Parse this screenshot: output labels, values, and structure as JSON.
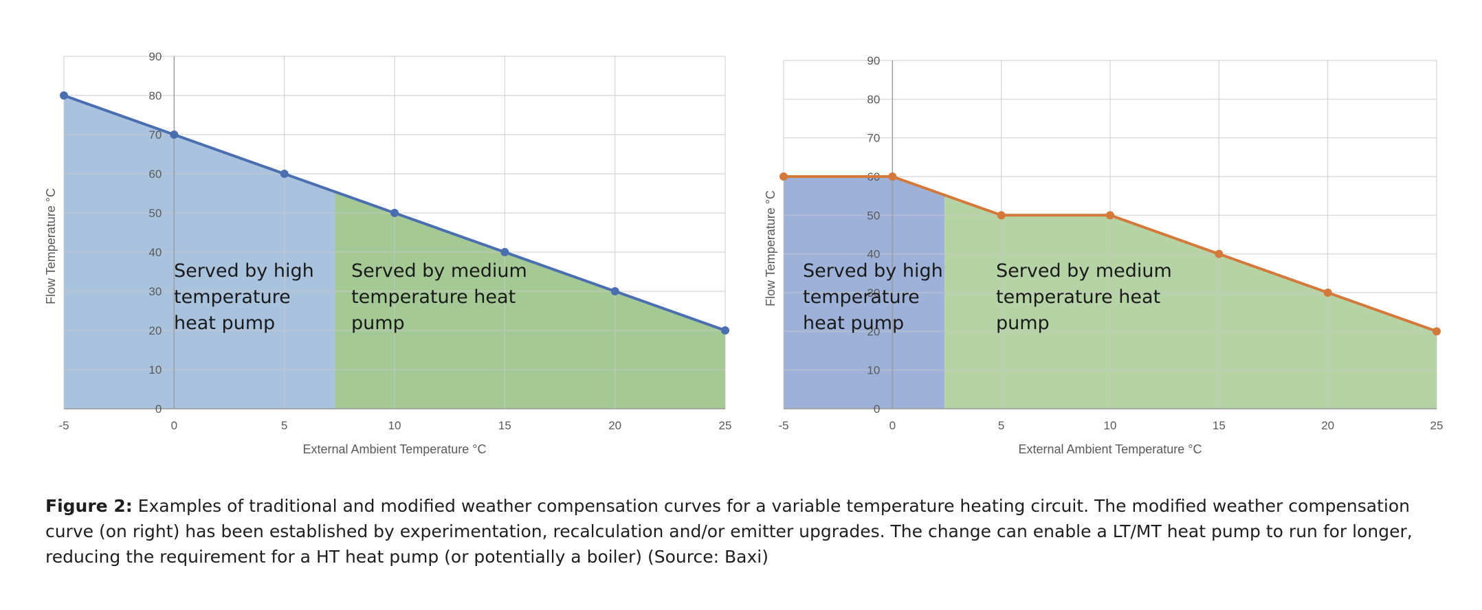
{
  "chart_data": [
    {
      "type": "area",
      "xlabel": "External Ambient Temperature °C",
      "ylabel": "Flow Temperature °C",
      "xlim": [
        -5,
        25
      ],
      "ylim": [
        0,
        90
      ],
      "x_ticks": [
        "-5",
        "0",
        "5",
        "10",
        "15",
        "20",
        "25"
      ],
      "y_ticks": [
        "0",
        "10",
        "20",
        "30",
        "40",
        "50",
        "60",
        "70",
        "80",
        "90"
      ],
      "grid": true,
      "series": [
        {
          "x": [
            -5,
            0,
            5,
            10,
            15,
            20,
            25
          ],
          "y": [
            80,
            70,
            60,
            50,
            40,
            30,
            20
          ],
          "color": "#4a6fb0"
        }
      ],
      "regions": [
        {
          "x_from": -5,
          "x_to": 7.3,
          "color": "#a9c3df",
          "label_lines": [
            "Served by high",
            "temperature",
            "heat pump"
          ]
        },
        {
          "x_from": 7.3,
          "x_to": 25,
          "color": "#a5c995",
          "label_lines": [
            "Served by medium",
            "temperature heat",
            "pump"
          ]
        }
      ]
    },
    {
      "type": "area",
      "xlabel": "External Ambient Temperature °C",
      "ylabel": "Flow Temperature °C",
      "xlim": [
        -5,
        25
      ],
      "ylim": [
        0,
        90
      ],
      "x_ticks": [
        "-5",
        "0",
        "5",
        "10",
        "15",
        "20",
        "25"
      ],
      "y_ticks": [
        "0",
        "10",
        "20",
        "30",
        "40",
        "50",
        "60",
        "70",
        "80",
        "90"
      ],
      "grid": true,
      "series": [
        {
          "x": [
            -5,
            0,
            5,
            10,
            15,
            20,
            25
          ],
          "y": [
            60,
            60,
            50,
            50,
            40,
            30,
            20
          ],
          "color": "#d4793a"
        }
      ],
      "regions": [
        {
          "x_from": -5,
          "x_to": 2.4,
          "color": "#9eb1d8",
          "label_lines": [
            "Served by high",
            "temperature",
            "heat pump"
          ]
        },
        {
          "x_from": 2.4,
          "x_to": 25,
          "color": "#b5d3a5",
          "label_lines": [
            "Served by medium",
            "temperature heat",
            "pump"
          ]
        }
      ]
    }
  ],
  "caption": {
    "label": "Figure 2:",
    "text": " Examples of traditional and modified weather compensation curves for a variable temperature heating circuit. The modified weather compensation curve (on right) has been established by experimentation, recalculation and/or emitter upgrades. The change can enable a LT/MT heat pump to run for longer, reducing the requirement for a HT heat pump (or potentially a boiler) (Source: Baxi)"
  }
}
